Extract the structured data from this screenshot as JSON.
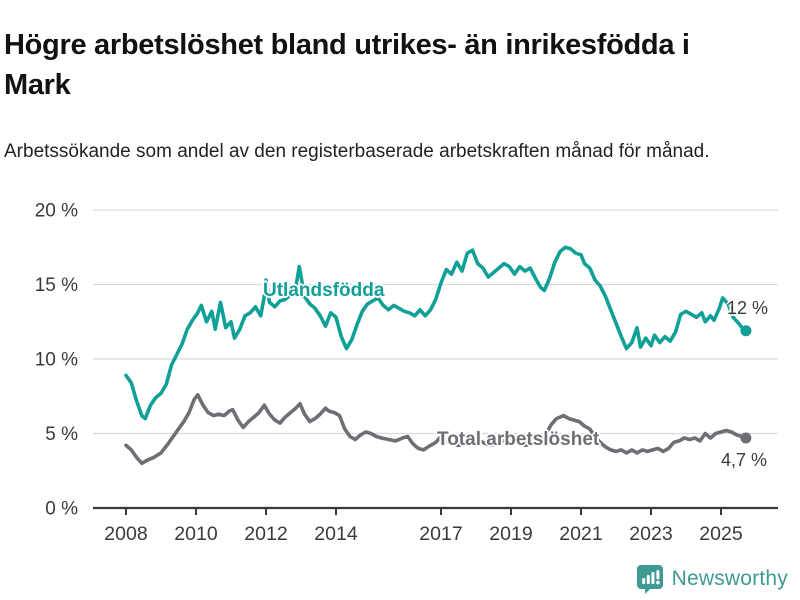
{
  "header": {
    "title": "Högre arbetslöshet bland utrikes- än inrikesfödda i Mark",
    "subtitle": "Arbetssökande som andel av den registerbaserade arbetskraften månad för månad."
  },
  "chart_data": {
    "type": "line",
    "title": "Högre arbetslöshet bland utrikes- än inrikesfödda i Mark",
    "xlabel": "",
    "ylabel": "",
    "unit": "%",
    "grid": "horizontal",
    "legend_position": "inline-labels",
    "ylim": [
      0,
      20
    ],
    "xlim": [
      2007.1,
      2026.6
    ],
    "y_ticks": [
      {
        "label": "0 %",
        "value": 0
      },
      {
        "label": "5 %",
        "value": 5
      },
      {
        "label": "10 %",
        "value": 10
      },
      {
        "label": "15 %",
        "value": 15
      },
      {
        "label": "20 %",
        "value": 20
      }
    ],
    "x_ticks": [
      {
        "label": "2008",
        "value": 2008
      },
      {
        "label": "2010",
        "value": 2010
      },
      {
        "label": "2012",
        "value": 2012
      },
      {
        "label": "2014",
        "value": 2014
      },
      {
        "label": "2017",
        "value": 2017
      },
      {
        "label": "2019",
        "value": 2019
      },
      {
        "label": "2021",
        "value": 2021
      },
      {
        "label": "2023",
        "value": 2023
      },
      {
        "label": "2025",
        "value": 2025
      }
    ],
    "series": [
      {
        "name": "Utlandsfödda",
        "color": "#10a097",
        "end_label": "12 %",
        "end_value": 12,
        "points": [
          [
            2008.0,
            8.9
          ],
          [
            2008.15,
            8.4
          ],
          [
            2008.3,
            7.2
          ],
          [
            2008.45,
            6.2
          ],
          [
            2008.55,
            6.0
          ],
          [
            2008.7,
            6.9
          ],
          [
            2008.85,
            7.4
          ],
          [
            2009.0,
            7.7
          ],
          [
            2009.15,
            8.3
          ],
          [
            2009.3,
            9.6
          ],
          [
            2009.45,
            10.3
          ],
          [
            2009.6,
            11.0
          ],
          [
            2009.75,
            12.0
          ],
          [
            2009.9,
            12.6
          ],
          [
            2010.05,
            13.1
          ],
          [
            2010.15,
            13.6
          ],
          [
            2010.3,
            12.5
          ],
          [
            2010.45,
            13.2
          ],
          [
            2010.55,
            12.0
          ],
          [
            2010.7,
            13.8
          ],
          [
            2010.85,
            12.1
          ],
          [
            2011.0,
            12.5
          ],
          [
            2011.1,
            11.4
          ],
          [
            2011.25,
            12.0
          ],
          [
            2011.4,
            12.9
          ],
          [
            2011.55,
            13.1
          ],
          [
            2011.7,
            13.5
          ],
          [
            2011.85,
            12.9
          ],
          [
            2011.95,
            14.2
          ],
          [
            2012.0,
            15.3
          ],
          [
            2012.1,
            13.8
          ],
          [
            2012.25,
            13.5
          ],
          [
            2012.4,
            13.9
          ],
          [
            2012.55,
            14.0
          ],
          [
            2012.7,
            14.3
          ],
          [
            2012.85,
            14.8
          ],
          [
            2012.95,
            16.2
          ],
          [
            2013.1,
            14.2
          ],
          [
            2013.25,
            13.7
          ],
          [
            2013.4,
            13.4
          ],
          [
            2013.55,
            12.9
          ],
          [
            2013.7,
            12.2
          ],
          [
            2013.85,
            13.1
          ],
          [
            2014.0,
            12.8
          ],
          [
            2014.15,
            11.5
          ],
          [
            2014.3,
            10.7
          ],
          [
            2014.45,
            11.3
          ],
          [
            2014.6,
            12.3
          ],
          [
            2014.75,
            13.2
          ],
          [
            2014.9,
            13.7
          ],
          [
            2015.05,
            13.9
          ],
          [
            2015.2,
            14.1
          ],
          [
            2015.35,
            13.6
          ],
          [
            2015.5,
            13.3
          ],
          [
            2015.65,
            13.6
          ],
          [
            2015.8,
            13.4
          ],
          [
            2015.95,
            13.2
          ],
          [
            2016.1,
            13.1
          ],
          [
            2016.25,
            12.9
          ],
          [
            2016.4,
            13.3
          ],
          [
            2016.55,
            12.9
          ],
          [
            2016.7,
            13.3
          ],
          [
            2016.85,
            14.0
          ],
          [
            2017.0,
            15.1
          ],
          [
            2017.15,
            16.0
          ],
          [
            2017.3,
            15.7
          ],
          [
            2017.45,
            16.5
          ],
          [
            2017.6,
            15.9
          ],
          [
            2017.75,
            17.1
          ],
          [
            2017.9,
            17.3
          ],
          [
            2018.05,
            16.4
          ],
          [
            2018.2,
            16.1
          ],
          [
            2018.35,
            15.5
          ],
          [
            2018.5,
            15.8
          ],
          [
            2018.65,
            16.1
          ],
          [
            2018.8,
            16.4
          ],
          [
            2018.95,
            16.2
          ],
          [
            2019.1,
            15.7
          ],
          [
            2019.25,
            16.2
          ],
          [
            2019.4,
            15.9
          ],
          [
            2019.55,
            16.1
          ],
          [
            2019.7,
            15.4
          ],
          [
            2019.85,
            14.8
          ],
          [
            2019.95,
            14.6
          ],
          [
            2020.1,
            15.4
          ],
          [
            2020.25,
            16.5
          ],
          [
            2020.4,
            17.2
          ],
          [
            2020.55,
            17.5
          ],
          [
            2020.7,
            17.4
          ],
          [
            2020.85,
            17.1
          ],
          [
            2021.0,
            17.0
          ],
          [
            2021.1,
            16.4
          ],
          [
            2021.25,
            16.1
          ],
          [
            2021.4,
            15.3
          ],
          [
            2021.55,
            14.9
          ],
          [
            2021.7,
            14.2
          ],
          [
            2021.85,
            13.3
          ],
          [
            2022.0,
            12.4
          ],
          [
            2022.15,
            11.5
          ],
          [
            2022.3,
            10.7
          ],
          [
            2022.45,
            11.1
          ],
          [
            2022.6,
            12.1
          ],
          [
            2022.7,
            10.8
          ],
          [
            2022.85,
            11.4
          ],
          [
            2023.0,
            10.9
          ],
          [
            2023.1,
            11.6
          ],
          [
            2023.25,
            11.1
          ],
          [
            2023.4,
            11.5
          ],
          [
            2023.55,
            11.2
          ],
          [
            2023.7,
            11.8
          ],
          [
            2023.85,
            13.0
          ],
          [
            2024.0,
            13.2
          ],
          [
            2024.15,
            13.0
          ],
          [
            2024.3,
            12.8
          ],
          [
            2024.45,
            13.1
          ],
          [
            2024.55,
            12.5
          ],
          [
            2024.7,
            12.9
          ],
          [
            2024.8,
            12.6
          ],
          [
            2024.95,
            13.4
          ],
          [
            2025.05,
            14.1
          ],
          [
            2025.2,
            13.7
          ],
          [
            2025.35,
            12.8
          ],
          [
            2025.5,
            12.4
          ],
          [
            2025.6,
            12.1
          ],
          [
            2025.71,
            11.9
          ]
        ]
      },
      {
        "name": "Total arbetslöshet",
        "color": "#6e6e74",
        "end_label": "4,7 %",
        "end_value": 4.7,
        "points": [
          [
            2008.0,
            4.2
          ],
          [
            2008.15,
            3.9
          ],
          [
            2008.3,
            3.4
          ],
          [
            2008.45,
            3.0
          ],
          [
            2008.6,
            3.2
          ],
          [
            2008.8,
            3.4
          ],
          [
            2009.0,
            3.7
          ],
          [
            2009.2,
            4.3
          ],
          [
            2009.35,
            4.8
          ],
          [
            2009.5,
            5.3
          ],
          [
            2009.65,
            5.8
          ],
          [
            2009.8,
            6.4
          ],
          [
            2009.95,
            7.3
          ],
          [
            2010.05,
            7.6
          ],
          [
            2010.2,
            6.9
          ],
          [
            2010.35,
            6.4
          ],
          [
            2010.5,
            6.2
          ],
          [
            2010.65,
            6.3
          ],
          [
            2010.8,
            6.2
          ],
          [
            2010.95,
            6.5
          ],
          [
            2011.05,
            6.6
          ],
          [
            2011.2,
            5.9
          ],
          [
            2011.35,
            5.4
          ],
          [
            2011.5,
            5.8
          ],
          [
            2011.65,
            6.1
          ],
          [
            2011.8,
            6.4
          ],
          [
            2011.95,
            6.9
          ],
          [
            2012.1,
            6.3
          ],
          [
            2012.25,
            5.9
          ],
          [
            2012.4,
            5.7
          ],
          [
            2012.55,
            6.1
          ],
          [
            2012.7,
            6.4
          ],
          [
            2012.85,
            6.7
          ],
          [
            2012.97,
            7.0
          ],
          [
            2013.1,
            6.3
          ],
          [
            2013.25,
            5.8
          ],
          [
            2013.4,
            6.0
          ],
          [
            2013.55,
            6.3
          ],
          [
            2013.7,
            6.7
          ],
          [
            2013.8,
            6.5
          ],
          [
            2013.95,
            6.4
          ],
          [
            2014.1,
            6.2
          ],
          [
            2014.25,
            5.3
          ],
          [
            2014.4,
            4.8
          ],
          [
            2014.55,
            4.6
          ],
          [
            2014.7,
            4.9
          ],
          [
            2014.85,
            5.1
          ],
          [
            2015.0,
            5.0
          ],
          [
            2015.15,
            4.8
          ],
          [
            2015.3,
            4.7
          ],
          [
            2015.5,
            4.6
          ],
          [
            2015.7,
            4.5
          ],
          [
            2015.9,
            4.7
          ],
          [
            2016.05,
            4.8
          ],
          [
            2016.2,
            4.3
          ],
          [
            2016.35,
            4.0
          ],
          [
            2016.5,
            3.9
          ],
          [
            2016.7,
            4.2
          ],
          [
            2016.85,
            4.4
          ],
          [
            2017.0,
            4.8
          ],
          [
            2017.15,
            4.5
          ],
          [
            2017.3,
            4.3
          ],
          [
            2017.5,
            4.2
          ],
          [
            2017.7,
            4.3
          ],
          [
            2017.9,
            4.6
          ],
          [
            2018.05,
            4.6
          ],
          [
            2018.2,
            4.4
          ],
          [
            2018.4,
            4.2
          ],
          [
            2018.6,
            4.3
          ],
          [
            2018.8,
            4.5
          ],
          [
            2019.0,
            4.6
          ],
          [
            2019.2,
            4.4
          ],
          [
            2019.4,
            4.2
          ],
          [
            2019.6,
            4.3
          ],
          [
            2019.8,
            4.5
          ],
          [
            2020.0,
            5.0
          ],
          [
            2020.15,
            5.6
          ],
          [
            2020.3,
            6.0
          ],
          [
            2020.5,
            6.2
          ],
          [
            2020.65,
            6.0
          ],
          [
            2020.8,
            5.9
          ],
          [
            2020.95,
            5.8
          ],
          [
            2021.1,
            5.5
          ],
          [
            2021.25,
            5.3
          ],
          [
            2021.4,
            4.8
          ],
          [
            2021.55,
            4.4
          ],
          [
            2021.7,
            4.1
          ],
          [
            2021.85,
            3.9
          ],
          [
            2022.0,
            3.8
          ],
          [
            2022.15,
            3.9
          ],
          [
            2022.3,
            3.7
          ],
          [
            2022.45,
            3.9
          ],
          [
            2022.6,
            3.7
          ],
          [
            2022.75,
            3.9
          ],
          [
            2022.9,
            3.8
          ],
          [
            2023.05,
            3.9
          ],
          [
            2023.2,
            4.0
          ],
          [
            2023.35,
            3.8
          ],
          [
            2023.5,
            4.0
          ],
          [
            2023.65,
            4.4
          ],
          [
            2023.8,
            4.5
          ],
          [
            2023.95,
            4.7
          ],
          [
            2024.1,
            4.6
          ],
          [
            2024.25,
            4.7
          ],
          [
            2024.4,
            4.5
          ],
          [
            2024.55,
            5.0
          ],
          [
            2024.7,
            4.7
          ],
          [
            2024.85,
            5.0
          ],
          [
            2025.0,
            5.1
          ],
          [
            2025.15,
            5.2
          ],
          [
            2025.3,
            5.1
          ],
          [
            2025.45,
            4.9
          ],
          [
            2025.6,
            4.8
          ],
          [
            2025.71,
            4.7
          ]
        ]
      }
    ]
  },
  "footer": {
    "brand": "Newsworthy"
  },
  "style": {
    "accent_teal": "#10a097",
    "series_gray": "#6e6e74",
    "axis_color": "#3a3a3a",
    "grid_color": "#dadada",
    "logo_teal": "#3f9a93"
  }
}
